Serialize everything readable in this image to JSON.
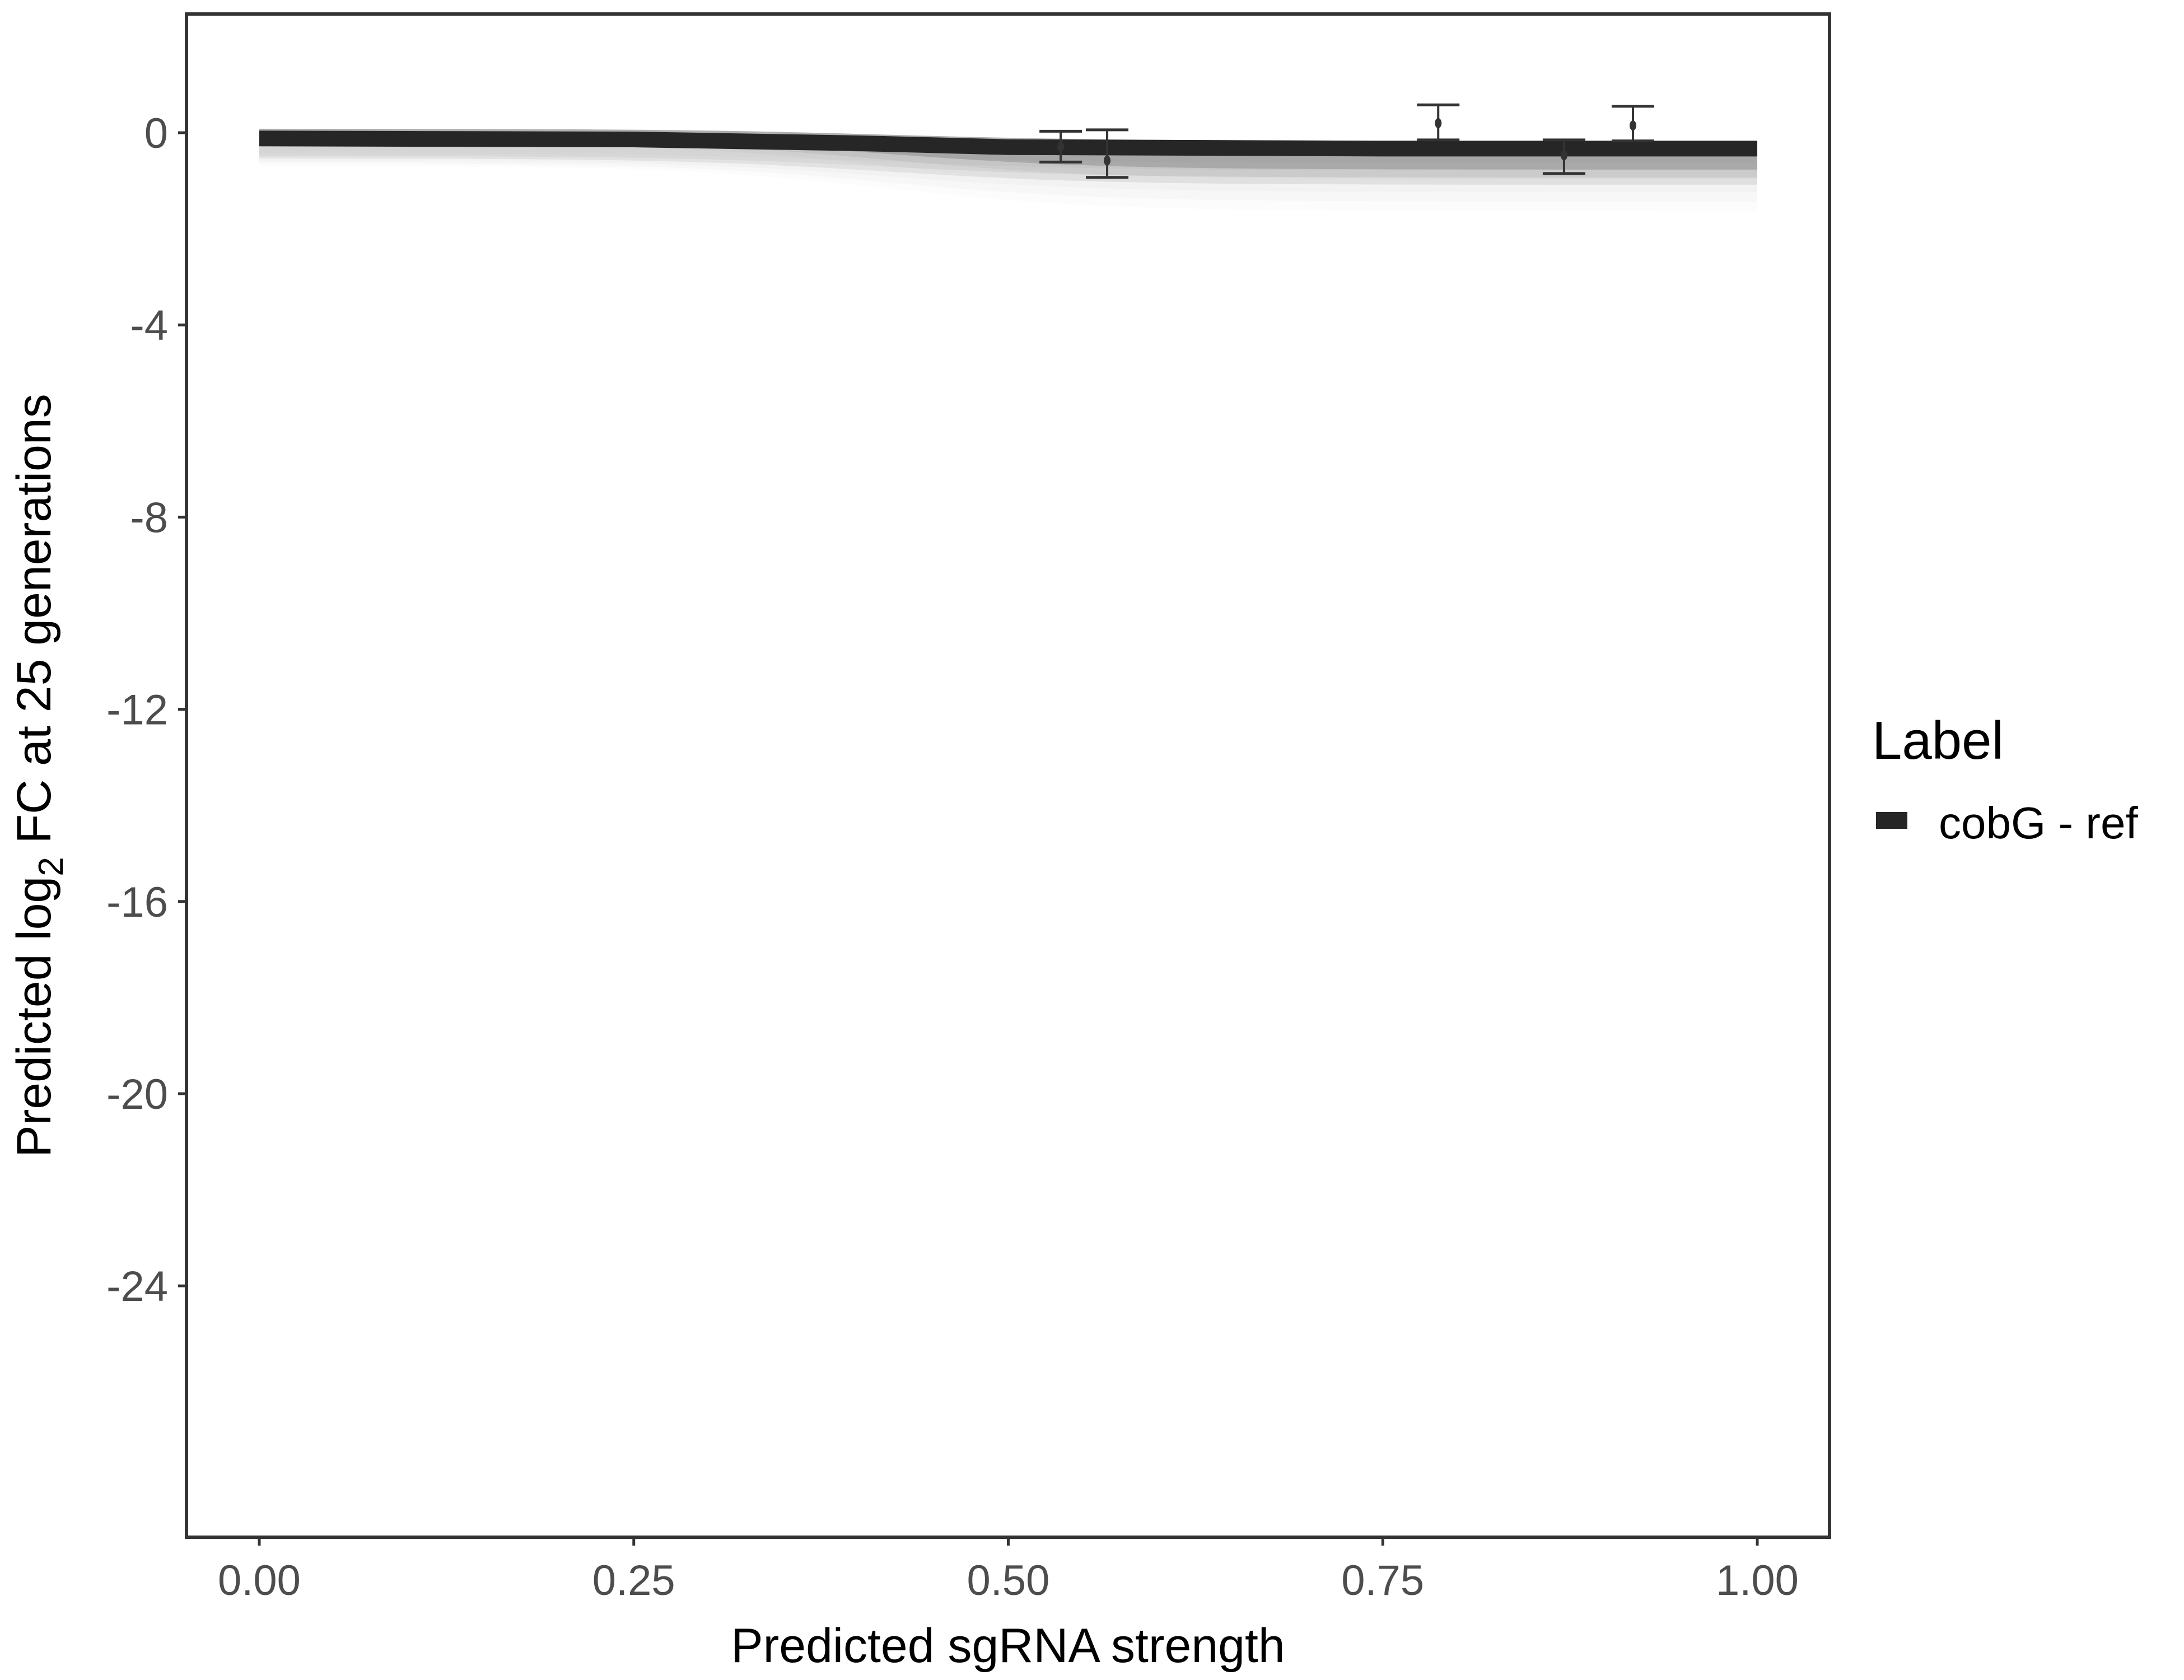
{
  "chart_data": {
    "type": "line",
    "xlabel": "Predicted sgRNA strength",
    "ylabel_parts": {
      "pre": "Predicted  log",
      "sub": "2",
      "post": " FC at 25 generations"
    },
    "xlim": [
      -0.1,
      1.1
    ],
    "ylim": [
      -29.2,
      2.47
    ],
    "x_ticks": [
      "0.00",
      "0.25",
      "0.50",
      "0.75",
      "1.00"
    ],
    "x_tick_values": [
      0,
      0.25,
      0.5,
      0.75,
      1.0
    ],
    "y_ticks": [
      "0",
      "-4",
      "-8",
      "-12",
      "-16",
      "-20",
      "-24"
    ],
    "y_tick_values": [
      0,
      -4,
      -8,
      -12,
      -16,
      -20,
      -24
    ],
    "grid": false,
    "legend": {
      "title": "Label",
      "position": "right",
      "entries": [
        {
          "label": "cobG - ref",
          "color": "#262626"
        }
      ]
    },
    "fit_line": {
      "color": "#262626",
      "x": [
        0,
        0.25,
        0.4,
        0.5,
        0.75,
        1.0
      ],
      "y": [
        -0.12,
        -0.14,
        -0.22,
        -0.3,
        -0.33,
        -0.33
      ]
    },
    "posterior_draws": {
      "color": "#a6a6a6",
      "y_at_0": [
        -0.15,
        -0.2,
        -0.25,
        -0.3,
        -0.35,
        -0.4,
        -0.45
      ],
      "y_at_1": [
        -0.4,
        -0.55,
        -0.7,
        -0.85,
        -1.0,
        -1.2,
        -1.4
      ]
    },
    "points": [
      {
        "x": 0.535,
        "y": -0.29,
        "ymin": -0.61,
        "ymax": 0.03
      },
      {
        "x": 0.566,
        "y": -0.58,
        "ymin": -0.93,
        "ymax": 0.06
      },
      {
        "x": 0.787,
        "y": 0.2,
        "ymin": -0.15,
        "ymax": 0.58
      },
      {
        "x": 0.871,
        "y": -0.47,
        "ymin": -0.85,
        "ymax": -0.15
      },
      {
        "x": 0.917,
        "y": 0.15,
        "ymin": -0.17,
        "ymax": 0.55
      }
    ]
  }
}
